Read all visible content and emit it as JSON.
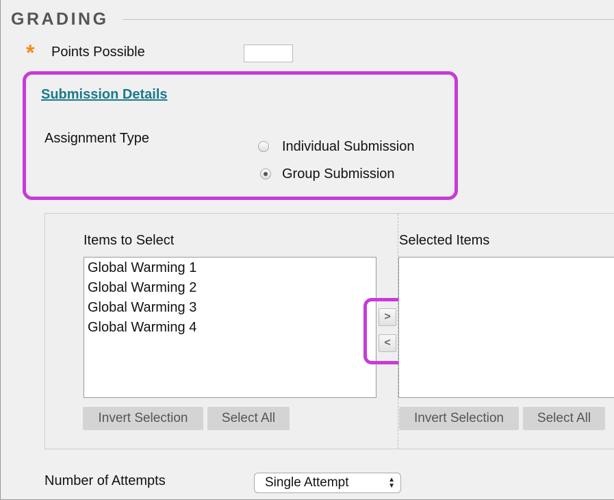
{
  "section_title": "GRADING",
  "points_possible": {
    "label": "Points Possible",
    "required_mark": "*",
    "value": ""
  },
  "submission_details": {
    "link": "Submission Details",
    "assignment_type_label": "Assignment Type",
    "options": [
      {
        "label": "Individual Submission",
        "selected": false
      },
      {
        "label": "Group Submission",
        "selected": true
      }
    ]
  },
  "group_picker": {
    "available_header": "Items to Select",
    "available_items": [
      "Global Warming 1",
      "Global Warming 2",
      "Global Warming 3",
      "Global Warming 4"
    ],
    "selected_header": "Selected Items",
    "selected_items": [],
    "move_right": ">",
    "move_left": "<",
    "invert_label": "Invert Selection",
    "select_all_label": "Select All"
  },
  "attempts": {
    "label": "Number of Attempts",
    "value": "Single Attempt"
  },
  "colors": {
    "highlight": "#c93ad9",
    "link": "#1a7a8a",
    "required": "#f08a1c"
  }
}
